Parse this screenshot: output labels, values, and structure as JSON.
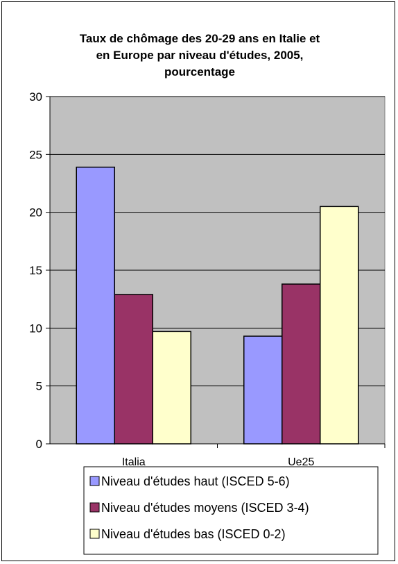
{
  "chart_data": {
    "type": "bar",
    "title_lines": [
      "Taux de chômage des 20-29 ans en Italie et",
      "en Europe par niveau d'études, 2005,",
      "pourcentage"
    ],
    "categories": [
      "Italia",
      "Ue25"
    ],
    "series": [
      {
        "name": "Niveau d'études haut (ISCED 5-6)",
        "values": [
          23.9,
          9.3
        ],
        "color": "#9999ff"
      },
      {
        "name": "Niveau d'études moyens (ISCED 3-4)",
        "values": [
          12.9,
          13.8
        ],
        "color": "#993366"
      },
      {
        "name": "Niveau d'études bas (ISCED 0-2)",
        "values": [
          9.7,
          20.5
        ],
        "color": "#ffffcc"
      }
    ],
    "ylim": [
      0,
      30
    ],
    "yticks": [
      0,
      5,
      10,
      15,
      20,
      25,
      30
    ],
    "grid": true,
    "plot_background": "#c0c0c0",
    "legend_position": "bottom"
  }
}
